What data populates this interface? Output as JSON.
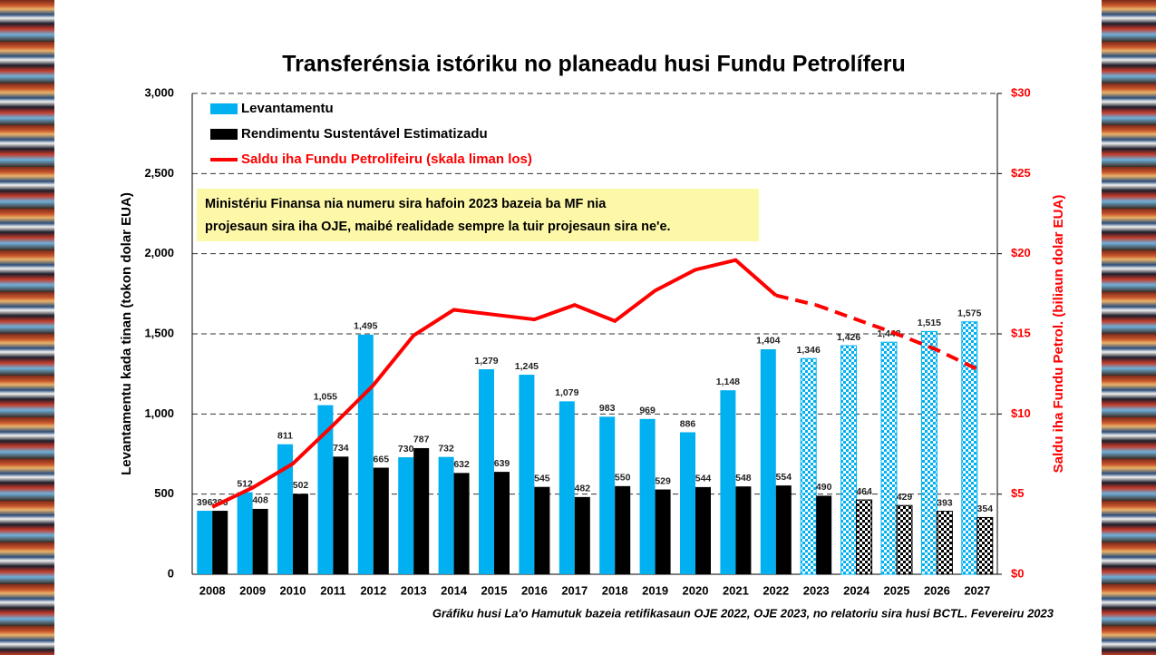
{
  "chart_data": {
    "type": "bar",
    "title": "Transferénsia istóriku no planeadu husi Fundu Petrolíferu",
    "y_label": "Levantamentu kada tinan (tokon dolar EUA)",
    "y2_label": "Saldu iha Fundu Petrol. (biliaun dolar EUA)",
    "annotation": [
      "Ministériu Finansa nia numeru sira hafoin 2023 bazeia ba MF nia",
      "projesaun sira iha OJE, maibé realidade sempre la tuir projesaun sira ne'e."
    ],
    "source": "Gráfiku husi La'o Hamutuk bazeia retifikasaun OJE 2022, OJE 2023, no relatoriu sira husi BCTL. Fevereiru 2023",
    "categories": [
      "2008",
      "2009",
      "2010",
      "2011",
      "2012",
      "2013",
      "2014",
      "2015",
      "2016",
      "2017",
      "2018",
      "2019",
      "2020",
      "2021",
      "2022",
      "2023",
      "2024",
      "2025",
      "2026",
      "2027"
    ],
    "ylim": [
      0,
      3000
    ],
    "yticks": [
      0,
      500,
      {
        "value": 1000,
        "label": "1,000"
      },
      {
        "value": 1500,
        "label": "1,500"
      },
      {
        "value": 2000,
        "label": "2,000"
      },
      {
        "value": 2500,
        "label": "2,500"
      },
      {
        "value": 3000,
        "label": "3,000"
      }
    ],
    "y2lim": [
      0,
      30
    ],
    "y2ticks": [
      {
        "value": 0,
        "label": "$0"
      },
      {
        "value": 5,
        "label": "$5"
      },
      {
        "value": 10,
        "label": "$10"
      },
      {
        "value": 15,
        "label": "$15"
      },
      {
        "value": 20,
        "label": "$20"
      },
      {
        "value": 25,
        "label": "$25"
      },
      {
        "value": 30,
        "label": "$30"
      }
    ],
    "grid": true,
    "legend": "top-left",
    "series": [
      {
        "name": "Levantamentu",
        "type": "bar",
        "color": "#00b0f0",
        "projected_from": "2023",
        "values": [
          396,
          512,
          811,
          1055,
          1495,
          730,
          732,
          1279,
          1245,
          1079,
          983,
          969,
          886,
          1148,
          1404,
          1346,
          1426,
          1448,
          1515,
          1575
        ],
        "value_labels": [
          "396",
          "512",
          "811",
          "1,055",
          "1,495",
          "730",
          "732",
          "1,279",
          "1,245",
          "1,079",
          "983",
          "969",
          "886",
          "1,148",
          "1,404",
          "1,346",
          "1,426",
          "1,448",
          "1,515",
          "1,575"
        ]
      },
      {
        "name": "Rendimentu Sustentável Estimatizadu",
        "type": "bar",
        "color": "#000000",
        "projected_from": "2024",
        "values": [
          396,
          408,
          502,
          734,
          665,
          787,
          632,
          639,
          545,
          482,
          550,
          529,
          544,
          548,
          554,
          490,
          464,
          429,
          393,
          354
        ]
      },
      {
        "name": "Saldu iha Fundu Petrolifeiru (skala liman los)",
        "type": "line",
        "axis": "y2",
        "color": "#ff0000",
        "projected_from": "2022",
        "values": [
          4.2,
          5.4,
          6.9,
          9.3,
          11.8,
          14.9,
          16.5,
          16.2,
          15.9,
          16.8,
          15.8,
          17.7,
          19.0,
          19.6,
          17.4,
          16.8,
          15.9,
          15.0,
          14.0,
          12.8
        ]
      }
    ]
  }
}
